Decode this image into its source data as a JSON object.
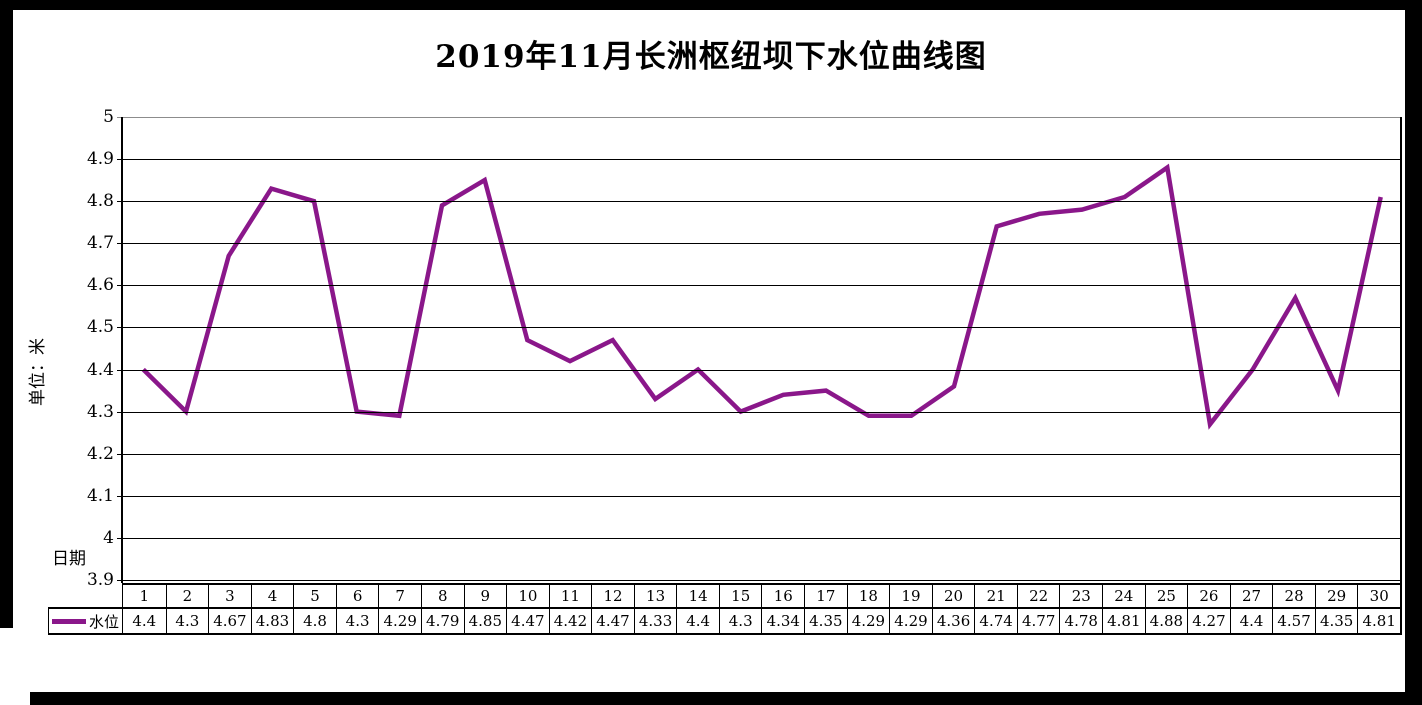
{
  "title": "2019年11月长洲枢纽坝下水位曲线图",
  "colors": {
    "series_line": "#8A178A",
    "gridline": "#000000",
    "gridline_top": "#8c8c8c",
    "frame": "#000000",
    "background": "#ffffff"
  },
  "legend": {
    "series_label": "水位"
  },
  "chart_data": {
    "type": "line",
    "title": "2019年11月长洲枢纽坝下水位曲线图",
    "xlabel": "日期",
    "ylabel": "单位：米",
    "ylim": [
      3.9,
      5
    ],
    "y_tick_step": 0.1,
    "y_tick_labels": [
      "5",
      "4.9",
      "4.8",
      "4.7",
      "4.6",
      "4.5",
      "4.4",
      "4.3",
      "4.2",
      "4.1",
      "4",
      "3.9"
    ],
    "grid": "horizontal",
    "legend_position": "table-row-header",
    "categories": [
      1,
      2,
      3,
      4,
      5,
      6,
      7,
      8,
      9,
      10,
      11,
      12,
      13,
      14,
      15,
      16,
      17,
      18,
      19,
      20,
      21,
      22,
      23,
      24,
      25,
      26,
      27,
      28,
      29,
      30
    ],
    "series": [
      {
        "name": "水位",
        "color": "#8A178A",
        "values": [
          4.4,
          4.3,
          4.67,
          4.83,
          4.8,
          4.3,
          4.29,
          4.79,
          4.85,
          4.47,
          4.42,
          4.47,
          4.33,
          4.4,
          4.3,
          4.34,
          4.35,
          4.29,
          4.29,
          4.36,
          4.74,
          4.77,
          4.78,
          4.81,
          4.88,
          4.27,
          4.4,
          4.57,
          4.35,
          4.81
        ]
      }
    ]
  }
}
